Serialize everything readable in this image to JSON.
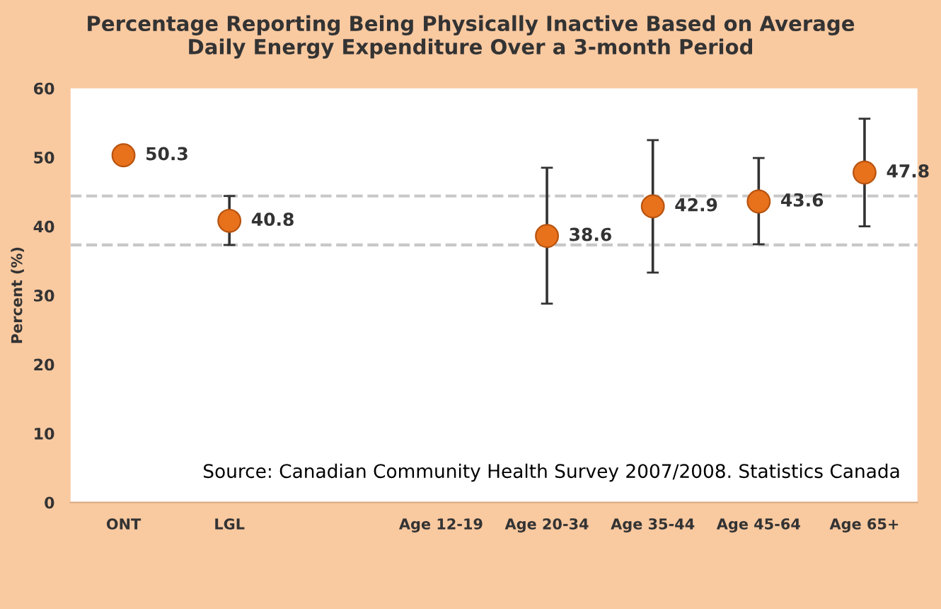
{
  "chart_data": {
    "type": "scatter",
    "title": "Percentage Reporting Being Physically Inactive Based on Average\nDaily Energy Expenditure Over a 3-month Period",
    "ylabel": "Percent (%)",
    "categories": [
      "ONT",
      "LGL",
      null,
      "Age 12-19",
      "Age 20-34",
      "Age 35-44",
      "Age 45-64",
      "Age 65+"
    ],
    "series": [
      {
        "color": "#e8711c",
        "values": [
          50.3,
          40.8,
          null,
          null,
          38.6,
          42.9,
          43.6,
          47.8
        ],
        "errors": [
          null,
          [
            37.3,
            44.4
          ],
          null,
          null,
          [
            28.8,
            48.5
          ],
          [
            33.3,
            52.5
          ],
          [
            37.4,
            49.9
          ],
          [
            40.0,
            55.6
          ]
        ]
      }
    ],
    "data_labels": true,
    "marker": "circle",
    "ylim": [
      0,
      60
    ],
    "yticks": [
      0,
      10,
      20,
      30,
      40,
      50,
      60
    ],
    "grid": false,
    "legend": false,
    "ref_lines": [
      {
        "axis": "y",
        "value": 44.4,
        "color": "#c8c8c8",
        "line_style": "dashed"
      },
      {
        "axis": "y",
        "value": 37.3,
        "color": "#c8c8c8",
        "line_style": "dashed"
      }
    ],
    "annotations": [
      "Source: Canadian Community Health Survey 2007/2008. Statistics Canada"
    ]
  }
}
